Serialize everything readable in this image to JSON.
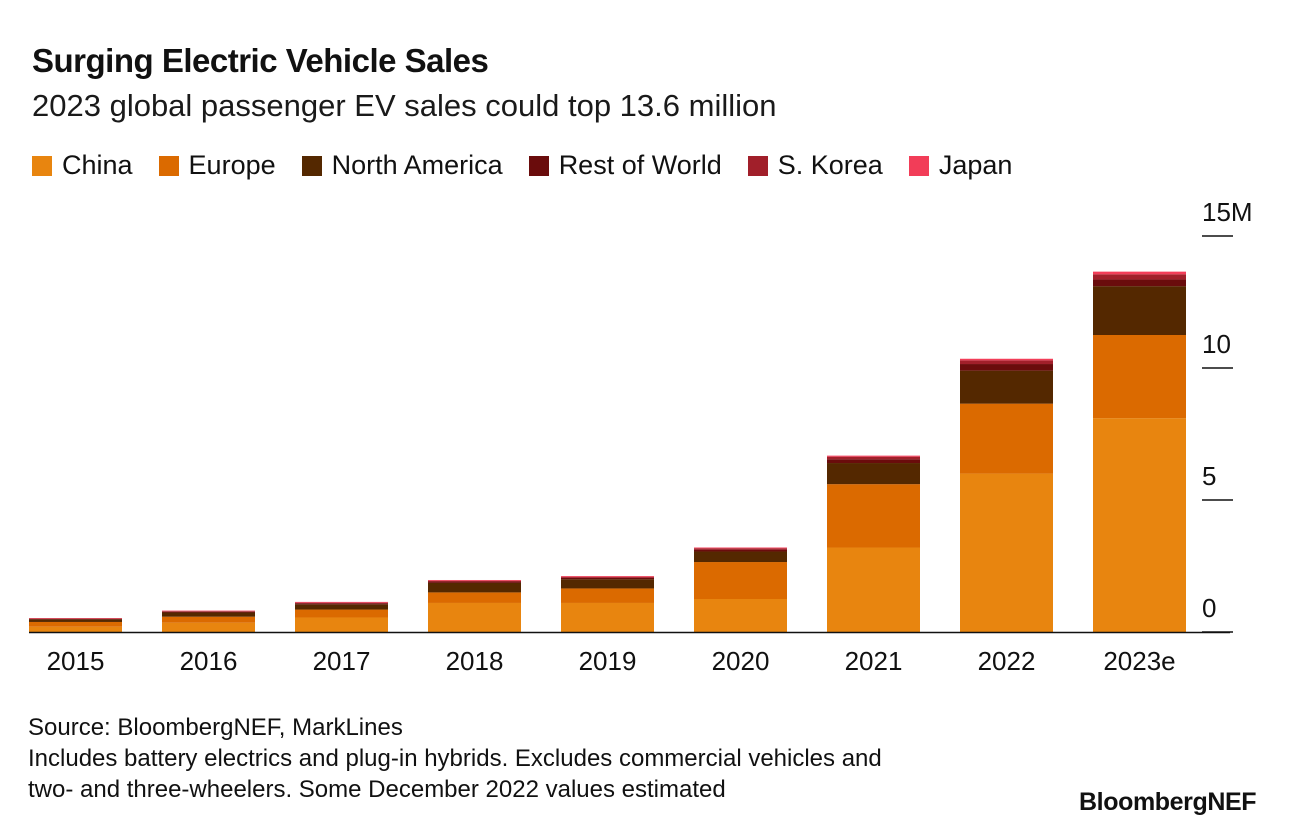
{
  "chart_data": {
    "type": "bar",
    "stacked": true,
    "title": "Surging Electric Vehicle Sales",
    "subtitle": "2023 global passenger EV sales could top 13.6 million",
    "categories": [
      "2015",
      "2016",
      "2017",
      "2018",
      "2019",
      "2020",
      "2021",
      "2022",
      "2023e"
    ],
    "series": [
      {
        "name": "China",
        "color": "#E8850F",
        "values": [
          0.2,
          0.35,
          0.55,
          1.1,
          1.1,
          1.25,
          3.2,
          6.0,
          8.1
        ]
      },
      {
        "name": "Europe",
        "color": "#DB6A00",
        "values": [
          0.18,
          0.23,
          0.3,
          0.4,
          0.55,
          1.4,
          2.4,
          2.65,
          3.15
        ]
      },
      {
        "name": "North America",
        "color": "#542800",
        "values": [
          0.1,
          0.16,
          0.2,
          0.36,
          0.35,
          0.4,
          0.8,
          1.25,
          1.85
        ]
      },
      {
        "name": "Rest of World",
        "color": "#6A0C0C",
        "values": [
          0.02,
          0.03,
          0.04,
          0.05,
          0.05,
          0.07,
          0.14,
          0.25,
          0.25
        ]
      },
      {
        "name": "S. Korea",
        "color": "#A11F2A",
        "values": [
          0.01,
          0.02,
          0.02,
          0.03,
          0.04,
          0.05,
          0.1,
          0.14,
          0.2
        ]
      },
      {
        "name": "Japan",
        "color": "#F23D58",
        "values": [
          0.02,
          0.02,
          0.03,
          0.03,
          0.03,
          0.03,
          0.04,
          0.06,
          0.1
        ]
      }
    ],
    "ylim": [
      0,
      15
    ],
    "yticks": [
      {
        "value": 0,
        "label": "0"
      },
      {
        "value": 5,
        "label": "5"
      },
      {
        "value": 10,
        "label": "10"
      },
      {
        "value": 15,
        "label": "15M"
      }
    ],
    "y_axis_position": "right",
    "legend_position": "top-left",
    "grid": false
  },
  "footer": {
    "source": "Source: BloombergNEF, MarkLines",
    "note_line1": "Includes battery electrics and plug-in hybrids. Excludes commercial vehicles and",
    "note_line2": "two- and three-wheelers. Some December 2022 values estimated"
  },
  "brand": "BloombergNEF"
}
